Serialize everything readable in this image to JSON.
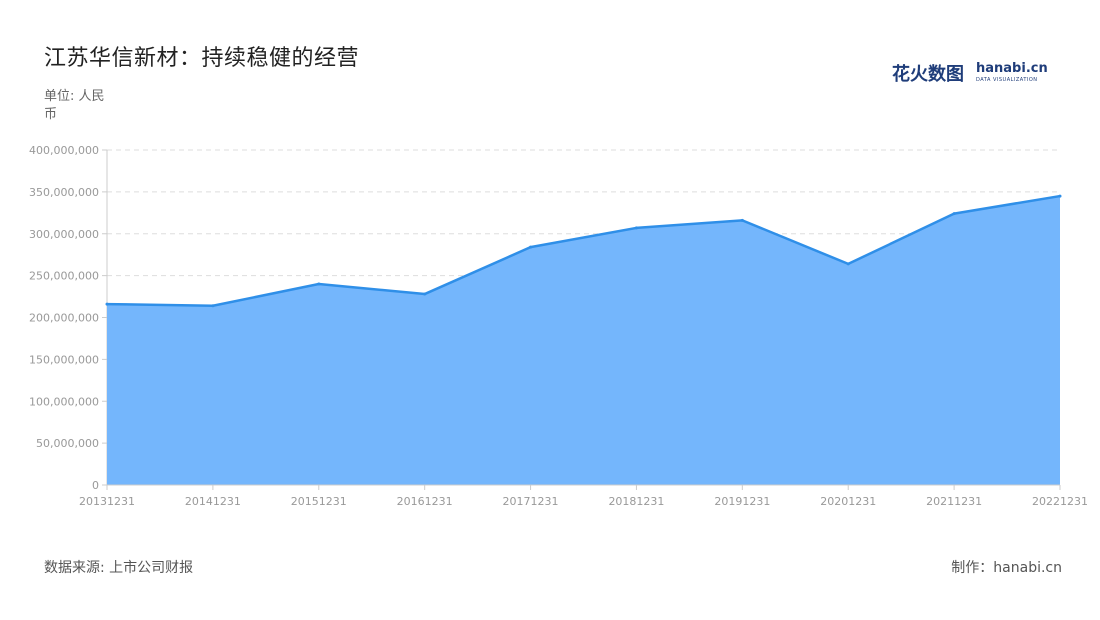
{
  "title": "江苏华信新材：持续稳健的经营",
  "unit_label": "单位: 人民币",
  "logo": {
    "cn": "花火数图",
    "en": "hanabi.cn",
    "sub": "DATA VISUALIZATION"
  },
  "source": "数据来源: 上市公司财报",
  "maker": "制作：hanabi.cn",
  "colors": {
    "fill": "#74b6fc",
    "line": "#2f8fe8",
    "grid": "#dddddd",
    "axis": "#cccccc"
  },
  "chart_data": {
    "type": "area",
    "x": [
      "20131231",
      "20141231",
      "20151231",
      "20161231",
      "20171231",
      "20181231",
      "20191231",
      "20201231",
      "20211231",
      "20221231"
    ],
    "values": [
      216000000,
      214000000,
      240000000,
      228000000,
      284000000,
      307000000,
      316000000,
      264000000,
      324000000,
      345000000
    ],
    "ylim": [
      0,
      400000000
    ],
    "yticks": [
      "0",
      "50,000,000",
      "100,000,000",
      "150,000,000",
      "200,000,000",
      "250,000,000",
      "300,000,000",
      "350,000,000",
      "400,000,000"
    ],
    "grid": true,
    "legend": "none"
  }
}
